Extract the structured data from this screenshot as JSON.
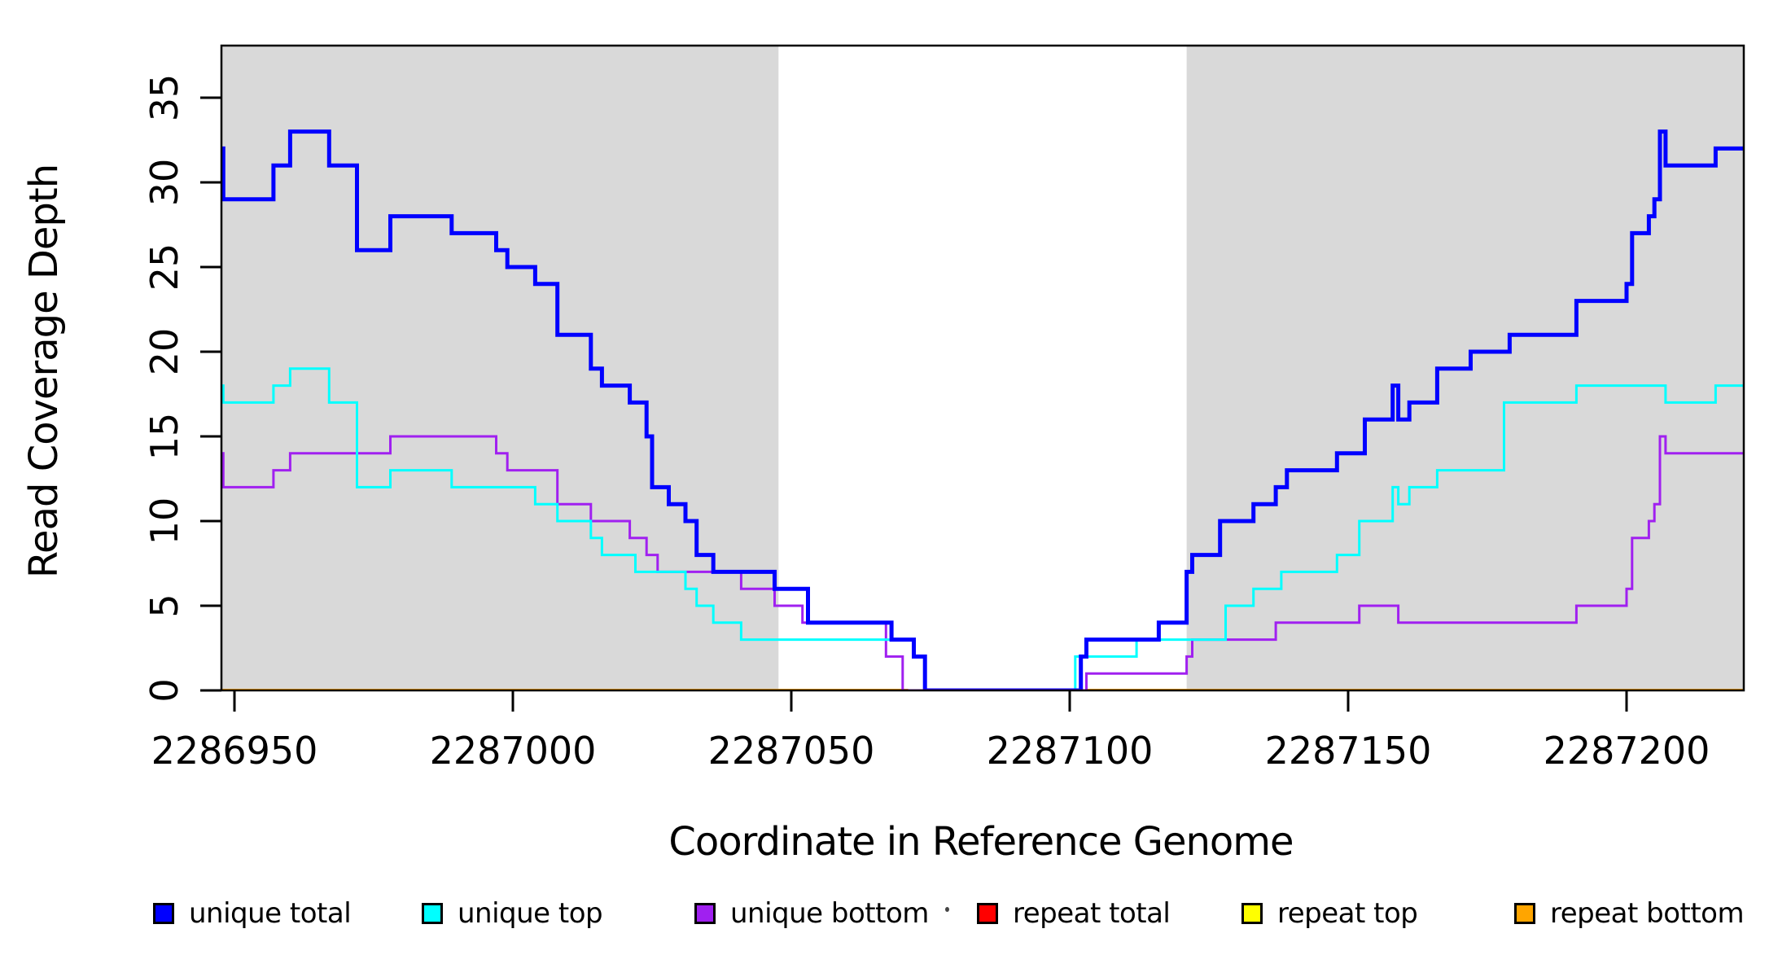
{
  "chart_data": {
    "type": "line",
    "subtype": "step-coverage-plot",
    "title": "",
    "xlabel": "Coordinate in Reference Genome",
    "ylabel": "Read Coverage Depth",
    "xlim": [
      2286947,
      2287221
    ],
    "ylim": [
      0,
      38
    ],
    "grid": false,
    "legend_position": "bottom",
    "xticks": [
      {
        "value": 2286950,
        "label": "2286950"
      },
      {
        "value": 2287000,
        "label": "2287000"
      },
      {
        "value": 2287050,
        "label": "2287050"
      },
      {
        "value": 2287100,
        "label": "2287100"
      },
      {
        "value": 2287150,
        "label": "2287150"
      },
      {
        "value": 2287200,
        "label": "2287200"
      }
    ],
    "yticks": [
      {
        "value": 0,
        "label": "0"
      },
      {
        "value": 5,
        "label": "5"
      },
      {
        "value": 10,
        "label": "10"
      },
      {
        "value": 15,
        "label": "15"
      },
      {
        "value": 20,
        "label": "20"
      },
      {
        "value": 25,
        "label": "25"
      },
      {
        "value": 30,
        "label": "30"
      },
      {
        "value": 35,
        "label": "35"
      }
    ],
    "shaded_regions": [
      {
        "x0": 2286947,
        "x1": 2287047.7,
        "color": "#D9D9D9"
      },
      {
        "x0": 2287121.0,
        "x1": 2287221,
        "color": "#D9D9D9"
      }
    ],
    "series": [
      {
        "name": "repeat total",
        "color": "#FF0000",
        "width": 3,
        "segments": [
          [
            [
              2286947,
              0
            ],
            [
              2287071,
              0
            ]
          ],
          [
            [
              2287103,
              0
            ],
            [
              2287221,
              0
            ]
          ]
        ]
      },
      {
        "name": "repeat top",
        "color": "#FFFF00",
        "width": 3,
        "segments": [
          [
            [
              2286947,
              0
            ],
            [
              2287071,
              0
            ]
          ],
          [
            [
              2287103,
              0
            ],
            [
              2287221,
              0
            ]
          ]
        ]
      },
      {
        "name": "repeat bottom",
        "color": "#FFA500",
        "width": 4,
        "segments": [
          [
            [
              2286947,
              0
            ],
            [
              2287071,
              0
            ]
          ],
          [
            [
              2287103,
              0
            ],
            [
              2287221,
              0
            ]
          ]
        ]
      },
      {
        "name": "unique bottom",
        "color": "#A020F0",
        "width": 3,
        "segments": [
          [
            [
              2286947,
              14
            ],
            [
              2286948,
              12
            ],
            [
              2286957,
              13
            ],
            [
              2286960,
              14
            ],
            [
              2286978,
              15
            ],
            [
              2286997,
              14
            ],
            [
              2286999,
              13
            ],
            [
              2287008,
              11
            ],
            [
              2287014,
              10
            ],
            [
              2287021,
              9
            ],
            [
              2287024,
              8
            ],
            [
              2287026,
              7
            ],
            [
              2287041,
              6
            ],
            [
              2287047,
              5
            ],
            [
              2287052,
              4
            ],
            [
              2287067,
              2
            ],
            [
              2287070,
              0
            ],
            [
              2287103,
              1
            ],
            [
              2287121,
              2
            ],
            [
              2287122,
              3
            ],
            [
              2287137,
              4
            ],
            [
              2287152,
              5
            ],
            [
              2287159,
              4
            ],
            [
              2287191,
              5
            ],
            [
              2287200,
              6
            ],
            [
              2287201,
              9
            ],
            [
              2287204,
              10
            ],
            [
              2287205,
              11
            ],
            [
              2287206,
              15
            ],
            [
              2287207,
              14
            ],
            [
              2287221,
              14
            ]
          ]
        ]
      },
      {
        "name": "unique top",
        "color": "#00FFFF",
        "width": 3,
        "segments": [
          [
            [
              2286947,
              18
            ],
            [
              2286948,
              17
            ],
            [
              2286957,
              18
            ],
            [
              2286960,
              19
            ],
            [
              2286967,
              17
            ],
            [
              2286972,
              12
            ],
            [
              2286978,
              13
            ],
            [
              2286989,
              12
            ],
            [
              2287004,
              11
            ],
            [
              2287008,
              10
            ],
            [
              2287014,
              9
            ],
            [
              2287016,
              8
            ],
            [
              2287022,
              7
            ],
            [
              2287031,
              6
            ],
            [
              2287033,
              5
            ],
            [
              2287036,
              4
            ],
            [
              2287041,
              3
            ],
            [
              2287072,
              2
            ],
            [
              2287074,
              0
            ],
            [
              2287101,
              2
            ],
            [
              2287112,
              3
            ],
            [
              2287128,
              5
            ],
            [
              2287133,
              6
            ],
            [
              2287138,
              7
            ],
            [
              2287148,
              8
            ],
            [
              2287152,
              10
            ],
            [
              2287158,
              12
            ],
            [
              2287159,
              11
            ],
            [
              2287161,
              12
            ],
            [
              2287166,
              13
            ],
            [
              2287178,
              17
            ],
            [
              2287191,
              18
            ],
            [
              2287207,
              17
            ],
            [
              2287216,
              18
            ],
            [
              2287221,
              18
            ]
          ]
        ]
      },
      {
        "name": "unique total",
        "color": "#0000FF",
        "width": 5,
        "segments": [
          [
            [
              2286947,
              32
            ],
            [
              2286948,
              29
            ],
            [
              2286957,
              31
            ],
            [
              2286960,
              33
            ],
            [
              2286967,
              31
            ],
            [
              2286972,
              26
            ],
            [
              2286978,
              28
            ],
            [
              2286989,
              27
            ],
            [
              2286997,
              26
            ],
            [
              2286999,
              25
            ],
            [
              2287004,
              24
            ],
            [
              2287008,
              21
            ],
            [
              2287014,
              19
            ],
            [
              2287016,
              18
            ],
            [
              2287021,
              17
            ],
            [
              2287024,
              15
            ],
            [
              2287025,
              12
            ],
            [
              2287028,
              11
            ],
            [
              2287031,
              10
            ],
            [
              2287033,
              8
            ],
            [
              2287036,
              7
            ],
            [
              2287047,
              6
            ],
            [
              2287053,
              4
            ],
            [
              2287068,
              3
            ],
            [
              2287072,
              2
            ],
            [
              2287074,
              0
            ],
            [
              2287102,
              2
            ],
            [
              2287103,
              3
            ],
            [
              2287116,
              4
            ],
            [
              2287121,
              7
            ],
            [
              2287122,
              8
            ],
            [
              2287127,
              10
            ],
            [
              2287133,
              11
            ],
            [
              2287137,
              12
            ],
            [
              2287139,
              13
            ],
            [
              2287148,
              14
            ],
            [
              2287153,
              16
            ],
            [
              2287158,
              18
            ],
            [
              2287159,
              16
            ],
            [
              2287161,
              17
            ],
            [
              2287166,
              19
            ],
            [
              2287172,
              20
            ],
            [
              2287179,
              21
            ],
            [
              2287191,
              23
            ],
            [
              2287200,
              24
            ],
            [
              2287201,
              27
            ],
            [
              2287204,
              28
            ],
            [
              2287205,
              29
            ],
            [
              2287206,
              33
            ],
            [
              2287207,
              31
            ],
            [
              2287216,
              32
            ],
            [
              2287221,
              32
            ]
          ]
        ]
      }
    ],
    "overlays": [
      {
        "name": "unique bottom zero overlay",
        "color": "#A020F0",
        "width": 3,
        "segments": [
          [
            [
              2287070,
              0
            ],
            [
              2287103,
              0
            ]
          ]
        ]
      }
    ],
    "legend": [
      {
        "label": "unique total",
        "color": "#0000FF"
      },
      {
        "label": "unique top",
        "color": "#00FFFF"
      },
      {
        "label": "unique bottom",
        "color": "#A020F0"
      },
      {
        "label": "repeat total",
        "color": "#FF0000"
      },
      {
        "label": "repeat top",
        "color": "#FFFF00"
      },
      {
        "label": "repeat bottom",
        "color": "#FFA500"
      }
    ]
  },
  "layout_colors": {
    "background": "#FFFFFF",
    "plot_border": "#000000",
    "shading": "#D9D9D9",
    "text": "#000000"
  }
}
